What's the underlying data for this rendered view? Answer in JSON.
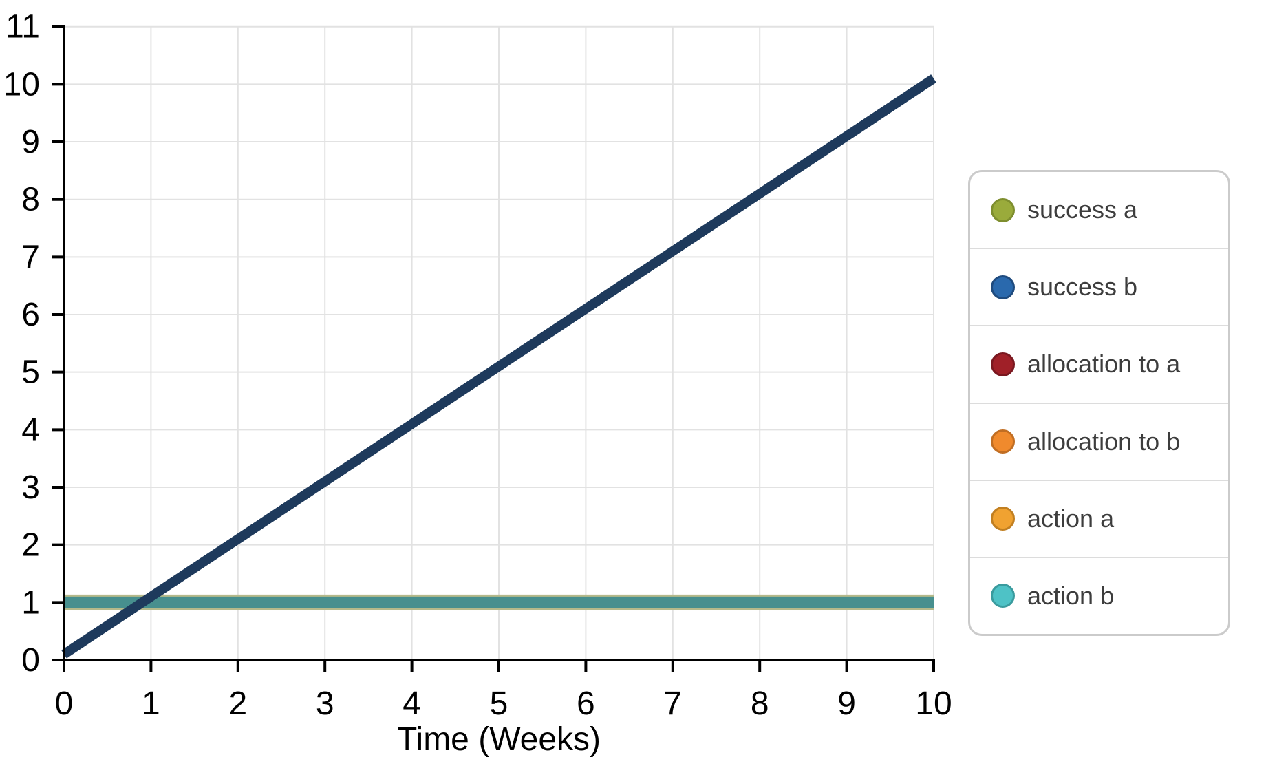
{
  "page": {
    "background": "#ffffff"
  },
  "chart_data": {
    "type": "line",
    "title": "",
    "xlabel": "Time (Weeks)",
    "ylabel": "",
    "xlim": [
      0,
      10
    ],
    "ylim": [
      0,
      11
    ],
    "xticks": [
      0,
      1,
      2,
      3,
      4,
      5,
      6,
      7,
      8,
      9,
      10
    ],
    "yticks": [
      0,
      1,
      2,
      3,
      4,
      5,
      6,
      7,
      8,
      9,
      10,
      11
    ],
    "grid": true,
    "grid_color": "#e2e2e2",
    "axis_color": "#000000",
    "tick_label_color": "#000000",
    "legend_position": "outside-right",
    "series": [
      {
        "name": "success a",
        "legend_color": "#9aab3b",
        "legend_border": "#7e8e2e",
        "line_color": "#b5b98a",
        "line_width": 23,
        "draw_order": 1,
        "points": [
          [
            0,
            1
          ],
          [
            10,
            1
          ]
        ],
        "visibility": "thin edges only, hidden behind action b line"
      },
      {
        "name": "success b",
        "legend_color": "#2a69ad",
        "legend_border": "#1f4b7e",
        "line_color": "#1e3a5c",
        "line_width": 14,
        "draw_order": 3,
        "points": [
          [
            0,
            0.1
          ],
          [
            10,
            10.1
          ]
        ],
        "visibility": "visible diagonal line"
      },
      {
        "name": "allocation to a",
        "legend_color": "#a02028",
        "legend_border": "#7a1820",
        "points": [],
        "visibility": "no line visible on plot"
      },
      {
        "name": "allocation to b",
        "legend_color": "#f08a2d",
        "legend_border": "#c16e23",
        "points": [],
        "visibility": "no line visible on plot"
      },
      {
        "name": "action a",
        "legend_color": "#f0a231",
        "legend_border": "#c17f21",
        "points": [],
        "visibility": "no line visible on plot"
      },
      {
        "name": "action b",
        "legend_color": "#4ec2c6",
        "legend_border": "#3a9b9e",
        "line_color": "#478f8e",
        "line_width": 17,
        "draw_order": 2,
        "points": [
          [
            0,
            1
          ],
          [
            10,
            1
          ]
        ],
        "visibility": "visible horizontal line at y=1"
      }
    ]
  }
}
